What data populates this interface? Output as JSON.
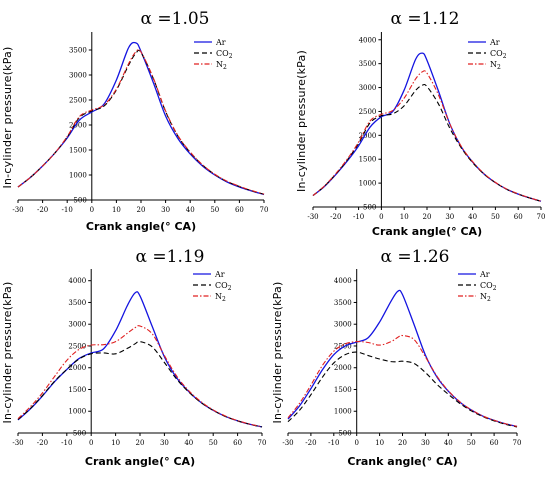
{
  "chart_data": [
    {
      "type": "line",
      "title": "α =1.05",
      "xlabel": "Crank angle(° CA)",
      "ylabel": "In-cylinder pressure(kPa)",
      "xlim": [
        -30,
        70
      ],
      "ylim": [
        500,
        3800
      ],
      "xticks": [
        -30,
        -20,
        -10,
        0,
        10,
        20,
        30,
        40,
        50,
        60,
        70
      ],
      "yticks": [
        500,
        1000,
        1500,
        2000,
        2500,
        3000,
        3500
      ],
      "x": [
        -30,
        -25,
        -20,
        -15,
        -10,
        -5,
        0,
        5,
        10,
        15,
        18,
        20,
        25,
        30,
        35,
        40,
        45,
        50,
        55,
        60,
        65,
        70
      ],
      "series": [
        {
          "name": "Ar",
          "color": "#1414e0",
          "dash": "",
          "values": [
            760,
            950,
            1180,
            1440,
            1740,
            2100,
            2260,
            2420,
            2900,
            3550,
            3640,
            3470,
            2850,
            2180,
            1730,
            1420,
            1180,
            1000,
            860,
            760,
            680,
            610
          ]
        },
        {
          "name": "CO2",
          "color": "#000000",
          "dash": "5,3",
          "values": [
            760,
            950,
            1180,
            1440,
            1760,
            2150,
            2280,
            2380,
            2700,
            3200,
            3440,
            3450,
            2930,
            2270,
            1780,
            1450,
            1200,
            1010,
            870,
            770,
            685,
            615
          ]
        },
        {
          "name": "N2",
          "color": "#e02020",
          "dash": "5,2,1.5,2",
          "values": [
            760,
            950,
            1180,
            1440,
            1770,
            2170,
            2300,
            2400,
            2720,
            3230,
            3470,
            3460,
            2940,
            2280,
            1790,
            1460,
            1205,
            1015,
            875,
            775,
            690,
            618
          ]
        }
      ]
    },
    {
      "type": "line",
      "title": "α =1.12",
      "xlabel": "Crank angle(° CA)",
      "ylabel": "In-cylinder pressure(kPa)",
      "xlim": [
        -30,
        70
      ],
      "ylim": [
        500,
        4100
      ],
      "xticks": [
        -30,
        -20,
        -10,
        0,
        10,
        20,
        30,
        40,
        50,
        60,
        70
      ],
      "yticks": [
        500,
        1000,
        1500,
        2000,
        2500,
        3000,
        3500,
        4000
      ],
      "x": [
        -30,
        -25,
        -20,
        -15,
        -10,
        -5,
        0,
        5,
        10,
        15,
        18,
        20,
        25,
        30,
        35,
        40,
        45,
        50,
        55,
        60,
        65,
        70
      ],
      "series": [
        {
          "name": "Ar",
          "color": "#1414e0",
          "dash": "",
          "values": [
            740,
            930,
            1180,
            1460,
            1780,
            2170,
            2390,
            2500,
            2950,
            3590,
            3720,
            3570,
            2930,
            2240,
            1760,
            1440,
            1190,
            1010,
            870,
            770,
            690,
            620
          ]
        },
        {
          "name": "CO2",
          "color": "#000000",
          "dash": "5,3",
          "values": [
            740,
            935,
            1190,
            1480,
            1830,
            2260,
            2410,
            2450,
            2620,
            2940,
            3050,
            3020,
            2660,
            2150,
            1740,
            1430,
            1190,
            1010,
            870,
            770,
            690,
            620
          ]
        },
        {
          "name": "N2",
          "color": "#e02020",
          "dash": "5,2,1.5,2",
          "values": [
            740,
            940,
            1200,
            1500,
            1860,
            2300,
            2440,
            2520,
            2780,
            3180,
            3330,
            3300,
            2850,
            2240,
            1770,
            1450,
            1200,
            1015,
            875,
            775,
            693,
            622
          ]
        }
      ]
    },
    {
      "type": "line",
      "title": "α =1.19",
      "xlabel": "Crank angle(° CA)",
      "ylabel": "In-cylinder pressure(kPa)",
      "xlim": [
        -30,
        70
      ],
      "ylim": [
        500,
        4200
      ],
      "xticks": [
        -30,
        -20,
        -10,
        0,
        10,
        20,
        30,
        40,
        50,
        60,
        70
      ],
      "yticks": [
        500,
        1000,
        1500,
        2000,
        2500,
        3000,
        3500,
        4000
      ],
      "x": [
        -30,
        -25,
        -20,
        -15,
        -10,
        -5,
        0,
        5,
        10,
        15,
        18,
        20,
        25,
        30,
        35,
        40,
        45,
        50,
        55,
        60,
        65,
        70
      ],
      "series": [
        {
          "name": "Ar",
          "color": "#1414e0",
          "dash": "",
          "values": [
            800,
            1050,
            1350,
            1680,
            1960,
            2210,
            2340,
            2430,
            2850,
            3450,
            3720,
            3650,
            2950,
            2250,
            1770,
            1450,
            1200,
            1020,
            880,
            780,
            700,
            640
          ]
        },
        {
          "name": "CO2",
          "color": "#000000",
          "dash": "5,3",
          "values": [
            810,
            1060,
            1360,
            1690,
            1960,
            2200,
            2320,
            2340,
            2320,
            2450,
            2550,
            2600,
            2480,
            2120,
            1740,
            1440,
            1200,
            1020,
            880,
            780,
            700,
            640
          ]
        },
        {
          "name": "N2",
          "color": "#e02020",
          "dash": "5,2,1.5,2",
          "values": [
            830,
            1100,
            1420,
            1800,
            2170,
            2420,
            2520,
            2530,
            2600,
            2800,
            2920,
            2960,
            2780,
            2280,
            1810,
            1470,
            1220,
            1030,
            890,
            785,
            705,
            645
          ]
        }
      ]
    },
    {
      "type": "line",
      "title": "α =1.26",
      "xlabel": "Crank angle(° CA)",
      "ylabel": "In-cylinder pressure(kPa)",
      "xlim": [
        -30,
        70
      ],
      "ylim": [
        500,
        4200
      ],
      "xticks": [
        -30,
        -20,
        -10,
        0,
        10,
        20,
        30,
        40,
        50,
        60,
        70
      ],
      "yticks": [
        500,
        1000,
        1500,
        2000,
        2500,
        3000,
        3500,
        4000
      ],
      "x": [
        -30,
        -25,
        -20,
        -15,
        -10,
        -5,
        0,
        5,
        10,
        15,
        18,
        20,
        25,
        30,
        35,
        40,
        45,
        50,
        55,
        60,
        65,
        70
      ],
      "series": [
        {
          "name": "Ar",
          "color": "#1414e0",
          "dash": "",
          "values": [
            820,
            1120,
            1520,
            1950,
            2300,
            2500,
            2590,
            2690,
            3050,
            3530,
            3760,
            3680,
            3000,
            2290,
            1790,
            1460,
            1210,
            1030,
            890,
            790,
            710,
            650
          ]
        },
        {
          "name": "CO2",
          "color": "#000000",
          "dash": "5,3",
          "values": [
            760,
            1020,
            1380,
            1780,
            2110,
            2300,
            2360,
            2280,
            2200,
            2140,
            2140,
            2150,
            2100,
            1890,
            1620,
            1390,
            1180,
            1010,
            880,
            780,
            700,
            640
          ]
        },
        {
          "name": "N2",
          "color": "#e02020",
          "dash": "5,2,1.5,2",
          "values": [
            850,
            1180,
            1600,
            2050,
            2380,
            2550,
            2600,
            2580,
            2520,
            2600,
            2700,
            2740,
            2650,
            2250,
            1810,
            1470,
            1220,
            1035,
            893,
            792,
            712,
            652
          ]
        }
      ]
    }
  ]
}
